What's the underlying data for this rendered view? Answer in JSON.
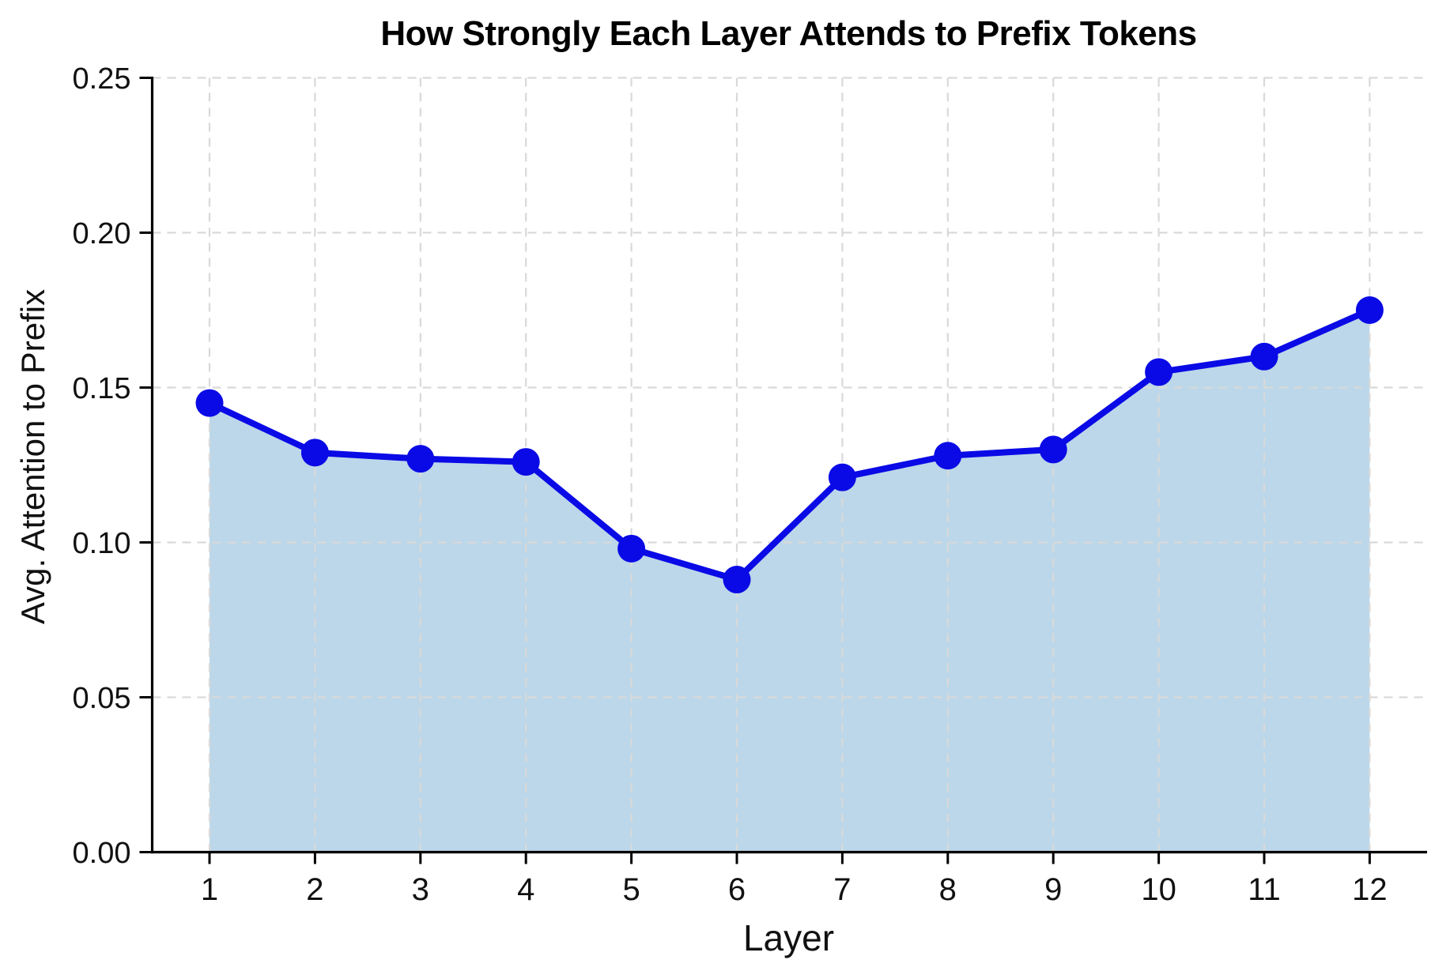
{
  "chart_data": {
    "type": "line",
    "title": "How Strongly Each Layer Attends to Prefix Tokens",
    "xlabel": "Layer",
    "ylabel": "Avg. Attention to Prefix",
    "x": [
      1,
      2,
      3,
      4,
      5,
      6,
      7,
      8,
      9,
      10,
      11,
      12
    ],
    "values": [
      0.145,
      0.129,
      0.127,
      0.126,
      0.098,
      0.088,
      0.121,
      0.128,
      0.13,
      0.155,
      0.16,
      0.175
    ],
    "xtick_labels": [
      "1",
      "2",
      "3",
      "4",
      "5",
      "6",
      "7",
      "8",
      "9",
      "10",
      "11",
      "12"
    ],
    "yticks": [
      0,
      0.05,
      0.1,
      0.15,
      0.2,
      0.25
    ],
    "ytick_labels": [
      "0.00",
      "0.05",
      "0.10",
      "0.15",
      "0.20",
      "0.25"
    ],
    "ylim": [
      0,
      0.25
    ],
    "grid": true,
    "grid_style": "dashed",
    "legend": false,
    "marker": "circle",
    "area_fill": true,
    "colors": {
      "line": "#0a0ae6",
      "marker": "#0a0ae6",
      "fill": "#bcd7e9",
      "grid": "#d9d9d9",
      "axis": "#000000",
      "text": "#111111"
    }
  }
}
